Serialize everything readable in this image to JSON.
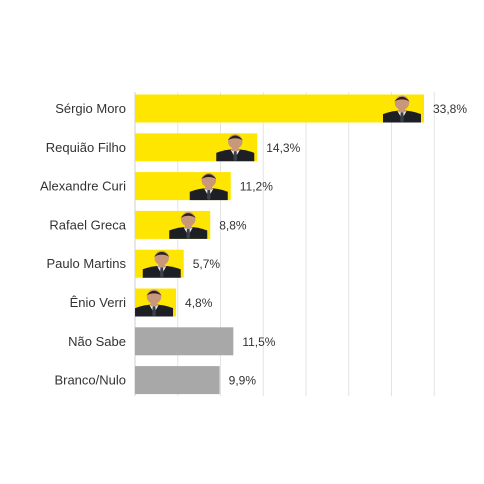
{
  "chart_data": {
    "type": "bar",
    "orientation": "horizontal",
    "categories": [
      "Sérgio Moro",
      "Requião Filho",
      "Alexandre Curi",
      "Rafael Greca",
      "Paulo Martins",
      "Ênio Verri",
      "Não Sabe",
      "Branco/Nulo"
    ],
    "values": [
      33.8,
      14.3,
      11.2,
      8.8,
      5.7,
      4.8,
      11.5,
      9.9
    ],
    "value_labels": [
      "33,8%",
      "14,3%",
      "11,2%",
      "8,8%",
      "5,7%",
      "4,8%",
      "11,5%",
      "9,9%"
    ],
    "has_photo": [
      true,
      true,
      true,
      true,
      true,
      true,
      false,
      false
    ],
    "xlim": [
      0,
      35
    ],
    "grid": true,
    "title": "",
    "xlabel": "",
    "ylabel": ""
  },
  "colors": {
    "candidate_bar": "#ffe600",
    "other_bar": "#a8a8a8",
    "suit": "#1d1f24",
    "skin": "#c9977a",
    "hair": "#2a211c",
    "shirt": "#f2f2f2"
  },
  "icons": {
    "candidate_photo": "person-portrait-icon"
  }
}
